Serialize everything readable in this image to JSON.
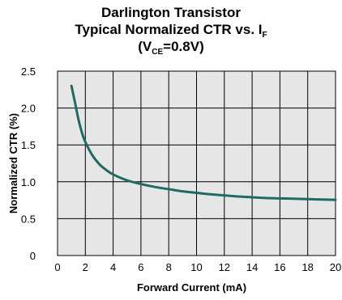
{
  "chart_data": {
    "type": "line",
    "title": {
      "line1": "Darlington Transistor",
      "line2_main": "Typical Normalized CTR vs. I",
      "line2_sub": "F",
      "line3_open": "(V",
      "line3_sub": "CE",
      "line3_close": "=0.8V)"
    },
    "xlabel": "Forward Current (mA)",
    "ylabel": "Normalized CTR (%)",
    "xlim": [
      0,
      20
    ],
    "ylim": [
      0,
      2.5
    ],
    "x_ticks": [
      "0",
      "2",
      "4",
      "6",
      "8",
      "10",
      "12",
      "14",
      "16",
      "18",
      "20"
    ],
    "y_ticks": [
      "0",
      "0.5",
      "1.0",
      "1.5",
      "2.0",
      "2.5"
    ],
    "grid": true,
    "colors": {
      "line": "#1d6b62",
      "plot_bg": "#e6e6e6",
      "grid": "#000000"
    },
    "series": [
      {
        "x": [
          1.0,
          1.25,
          1.5,
          1.75,
          2.0,
          2.5,
          3.0,
          3.5,
          4.0,
          5.0,
          6.0,
          7.0,
          8.0,
          9.0,
          10.0,
          11.0,
          12.0,
          13.0,
          14.0,
          15.0,
          16.0,
          17.0,
          18.0,
          19.0,
          20.0
        ],
        "y": [
          2.3,
          2.08,
          1.85,
          1.67,
          1.54,
          1.36,
          1.24,
          1.16,
          1.1,
          1.02,
          0.97,
          0.93,
          0.9,
          0.87,
          0.85,
          0.83,
          0.815,
          0.8,
          0.79,
          0.78,
          0.775,
          0.77,
          0.765,
          0.76,
          0.755
        ]
      }
    ]
  }
}
